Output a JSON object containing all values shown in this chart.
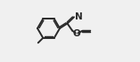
{
  "bg_color": "#f0f0f0",
  "line_color": "#2a2a2a",
  "line_width": 1.4,
  "font_size": 7.5,
  "N_label": "N",
  "O_label": "O",
  "xlim": [
    0,
    10
  ],
  "ylim": [
    0,
    7
  ]
}
